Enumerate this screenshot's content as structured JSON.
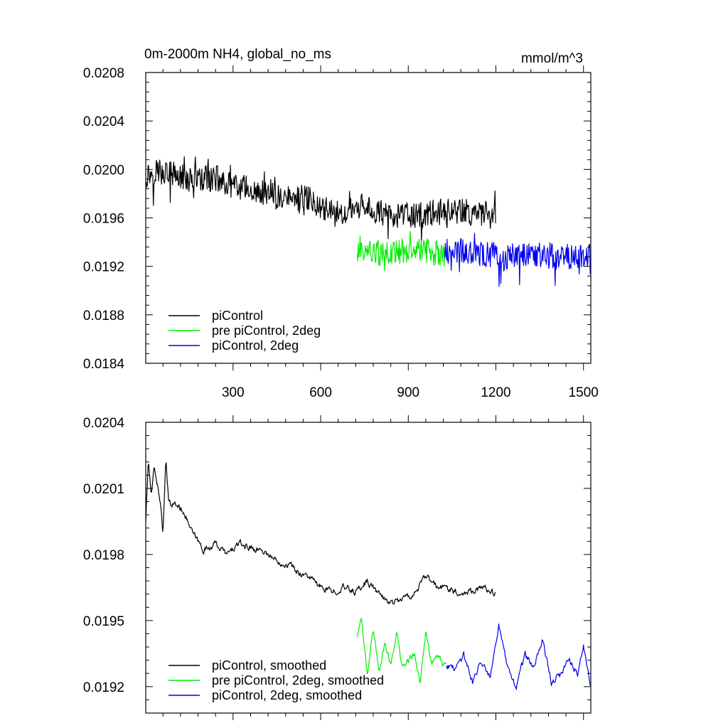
{
  "figure": {
    "title": "0m-2000m NH4, global_no_ms",
    "units": "mmol/m^3"
  },
  "chart_data": [
    {
      "type": "line",
      "title": "0m-2000m NH4, global_no_ms",
      "units_label": "mmol/m^3",
      "xlim": [
        1,
        1525
      ],
      "ylim": [
        0.0184,
        0.0208
      ],
      "x_ticks": [
        300,
        600,
        900,
        1200,
        1500
      ],
      "x_tick_labels": [
        "300",
        "600",
        "900",
        "1200",
        "1500"
      ],
      "y_ticks": [
        0.0184,
        0.0188,
        0.0192,
        0.0196,
        0.02,
        0.0204,
        0.0208
      ],
      "y_tick_labels": [
        "0.0184",
        "0.0188",
        "0.0192",
        "0.0196",
        "0.0200",
        "0.0204",
        "0.0208"
      ],
      "legend_position": "bottom-left",
      "series": [
        {
          "name": "piControl",
          "color": "#000000",
          "x": [
            1,
            50,
            100,
            150,
            200,
            250,
            300,
            350,
            400,
            450,
            500,
            550,
            600,
            650,
            700,
            750,
            800,
            850,
            900,
            950,
            1000,
            1050,
            1100,
            1150,
            1200
          ],
          "values": [
            0.01995,
            0.02,
            0.01995,
            0.01992,
            0.01992,
            0.01993,
            0.01985,
            0.01985,
            0.0198,
            0.01977,
            0.01975,
            0.01977,
            0.0197,
            0.01965,
            0.01965,
            0.0197,
            0.01965,
            0.01962,
            0.01962,
            0.01962,
            0.01965,
            0.01965,
            0.01965,
            0.01963,
            0.01964
          ]
        },
        {
          "name": "pre piControl, 2deg",
          "color": "#00ee00",
          "x": [
            725,
            775,
            825,
            875,
            925,
            975,
            1025
          ],
          "values": [
            0.01935,
            0.01932,
            0.0193,
            0.01932,
            0.01933,
            0.01932,
            0.0193
          ]
        },
        {
          "name": "piControl, 2deg",
          "color": "#0000ee",
          "x": [
            1025,
            1075,
            1125,
            1175,
            1225,
            1275,
            1325,
            1375,
            1425,
            1475,
            1525
          ],
          "values": [
            0.01932,
            0.01933,
            0.0193,
            0.0193,
            0.01928,
            0.01928,
            0.01928,
            0.01929,
            0.01928,
            0.01928,
            0.01928
          ]
        }
      ]
    },
    {
      "type": "line",
      "xlim": [
        1,
        1525
      ],
      "ylim": [
        0.01908,
        0.0204
      ],
      "x_ticks": [
        300,
        600,
        900,
        1200,
        1500
      ],
      "y_ticks": [
        0.0192,
        0.0195,
        0.0198,
        0.0201,
        0.0204
      ],
      "y_tick_labels": [
        "0.0192",
        "0.0195",
        "0.0198",
        "0.0201",
        "0.0204"
      ],
      "legend_position": "bottom-left",
      "series": [
        {
          "name": "piControl, smoothed",
          "color": "#000000",
          "x": [
            1,
            10,
            20,
            30,
            40,
            50,
            60,
            70,
            80,
            100,
            130,
            160,
            200,
            240,
            280,
            320,
            360,
            400,
            440,
            470,
            500,
            520,
            560,
            600,
            640,
            680,
            720,
            760,
            800,
            840,
            880,
            920,
            960,
            1000,
            1040,
            1080,
            1120,
            1160,
            1200
          ],
          "values": [
            0.01995,
            0.02023,
            0.02005,
            0.02021,
            0.02012,
            0.02005,
            0.0199,
            0.02022,
            0.02003,
            0.02003,
            0.02,
            0.0199,
            0.01982,
            0.01985,
            0.0198,
            0.01985,
            0.01983,
            0.01982,
            0.01978,
            0.01976,
            0.01975,
            0.01972,
            0.0197,
            0.01965,
            0.01963,
            0.01965,
            0.01963,
            0.01968,
            0.01962,
            0.01958,
            0.0196,
            0.01962,
            0.0197,
            0.01965,
            0.01965,
            0.01962,
            0.01964,
            0.01965,
            0.01962
          ]
        },
        {
          "name": "pre piControl, 2deg, smoothed",
          "color": "#00ee00",
          "x": [
            725,
            740,
            760,
            780,
            800,
            820,
            840,
            860,
            880,
            900,
            920,
            940,
            960,
            980,
            1000,
            1020,
            1030
          ],
          "values": [
            0.01943,
            0.01952,
            0.01925,
            0.01945,
            0.01928,
            0.0194,
            0.0193,
            0.01945,
            0.01928,
            0.01932,
            0.01935,
            0.01922,
            0.01945,
            0.0193,
            0.01935,
            0.01929,
            0.0193
          ]
        },
        {
          "name": "piControl, 2deg, smoothed",
          "color": "#0000ee",
          "x": [
            1030,
            1060,
            1090,
            1120,
            1150,
            1180,
            1210,
            1240,
            1270,
            1300,
            1330,
            1360,
            1390,
            1420,
            1450,
            1480,
            1500,
            1525
          ],
          "values": [
            0.0193,
            0.01928,
            0.01935,
            0.01922,
            0.01932,
            0.01925,
            0.01948,
            0.01928,
            0.0192,
            0.01935,
            0.01928,
            0.01942,
            0.01922,
            0.01925,
            0.01933,
            0.01926,
            0.01938,
            0.0192
          ]
        }
      ]
    }
  ]
}
